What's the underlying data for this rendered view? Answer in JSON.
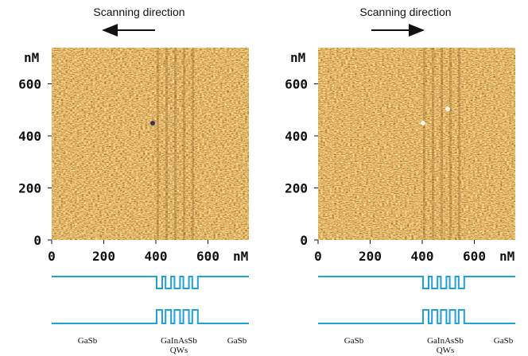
{
  "panels": [
    {
      "scan_label": "Scanning direction",
      "direction": "left",
      "y_unit": "nM",
      "x_unit": "nM",
      "yticks": [
        0,
        200,
        400,
        600
      ],
      "xticks": [
        0,
        200,
        400,
        600
      ],
      "materials": {
        "left": "GaSb",
        "middle": [
          "GaInAsSb",
          "QWs"
        ],
        "right": "GaSb"
      }
    },
    {
      "scan_label": "Scanning direction",
      "direction": "right",
      "y_unit": "nM",
      "x_unit": "nM",
      "yticks": [
        0,
        200,
        400,
        600
      ],
      "xticks": [
        0,
        200,
        400,
        600
      ],
      "materials": {
        "left": "GaSb",
        "middle": [
          "GaInAsSb",
          "QWs"
        ],
        "right": "GaSb"
      }
    }
  ]
}
